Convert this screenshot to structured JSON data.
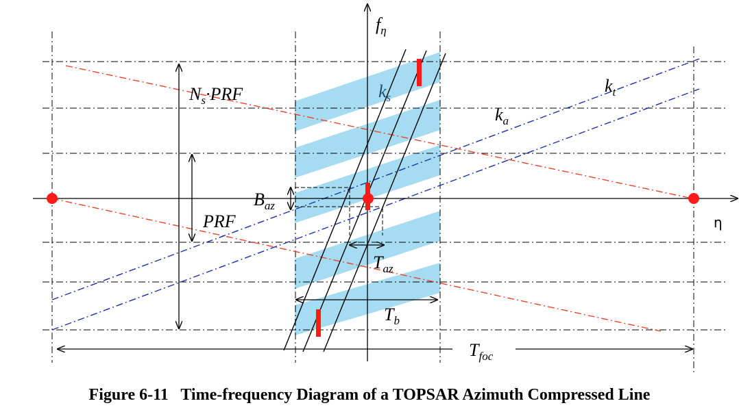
{
  "colors": {
    "band": "#a6dcf2",
    "red_line": "#e8452a",
    "blue_line": "#1a2fae",
    "marker": "#ff1a1a",
    "axis": "#000000"
  },
  "labels": {
    "f_eta": {
      "main": "f",
      "sub": "η"
    },
    "eta": "η",
    "ns_prf": {
      "N": "N",
      "s": "s",
      "rest": "·PRF"
    },
    "prf": "PRF",
    "ks": {
      "main": "k",
      "sub": "s"
    },
    "kt": {
      "main": "k",
      "sub": "t"
    },
    "ka": {
      "main": "k",
      "sub": "a"
    },
    "baz": {
      "main": "B",
      "sub": "az"
    },
    "taz": {
      "main": "T",
      "sub": "az"
    },
    "tb": {
      "main": "T",
      "sub": "b"
    },
    "tfoc": {
      "main": "T",
      "sub": "foc"
    }
  },
  "caption": "Figure 6-11   Time-frequency Diagram of a TOPSAR Azimuth Compressed Line"
}
